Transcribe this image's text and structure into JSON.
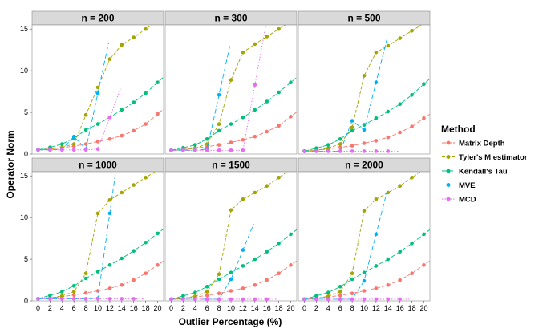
{
  "chart_data": {
    "type": "line",
    "xlabel": "Outlier Percentage (%)",
    "ylabel": "Operator Norm",
    "xticks": [
      0,
      2,
      4,
      6,
      8,
      10,
      12,
      14,
      16,
      18,
      20
    ],
    "yticks": [
      0,
      5,
      10,
      15
    ],
    "xlim": [
      -1,
      21
    ],
    "ylim": [
      0,
      15.5
    ],
    "legend_title": "Method",
    "legend_position": "right",
    "series_meta": [
      {
        "name": "Matrix Depth",
        "color": "#F8766D"
      },
      {
        "name": "Tyler's M estimator",
        "color": "#A3A500"
      },
      {
        "name": "Kendall's Tau",
        "color": "#00BF7D"
      },
      {
        "name": "MVE",
        "color": "#00B0F6"
      },
      {
        "name": "MCD",
        "color": "#E76BF3"
      }
    ],
    "panels": [
      {
        "title": "n = 200",
        "series": [
          {
            "name": "Matrix Depth",
            "x": [
              0,
              2,
              4,
              6,
              8,
              10,
              12,
              14,
              16,
              18,
              20
            ],
            "y": [
              0.5,
              0.6,
              0.75,
              0.95,
              1.2,
              1.5,
              1.8,
              2.2,
              2.8,
              3.6,
              4.8
            ]
          },
          {
            "name": "Tyler's M estimator",
            "x": [
              0,
              2,
              4,
              6,
              8,
              10,
              12,
              14,
              16,
              18
            ],
            "y": [
              0.5,
              0.6,
              0.8,
              1.2,
              4.7,
              8.0,
              11.4,
              13.1,
              14.0,
              15.0
            ]
          },
          {
            "name": "Kendall's Tau",
            "x": [
              0,
              2,
              4,
              6,
              8,
              10,
              12,
              14,
              16,
              18,
              20
            ],
            "y": [
              0.5,
              0.8,
              1.2,
              1.9,
              2.9,
              3.6,
              4.4,
              5.3,
              6.2,
              7.3,
              8.6
            ]
          },
          {
            "name": "MVE",
            "x": [
              0,
              2,
              4,
              6,
              8,
              10
            ],
            "y": [
              0.5,
              0.5,
              0.55,
              2.1,
              0.6,
              7.3
            ]
          },
          {
            "name": "MCD",
            "x": [
              0,
              2,
              4,
              6,
              8,
              10,
              12
            ],
            "y": [
              0.5,
              0.5,
              0.5,
              0.5,
              0.5,
              0.6,
              4.4
            ]
          }
        ]
      },
      {
        "title": "n = 300",
        "series": [
          {
            "name": "Matrix Depth",
            "x": [
              0,
              2,
              4,
              6,
              8,
              10,
              12,
              14,
              16,
              18,
              20
            ],
            "y": [
              0.45,
              0.55,
              0.7,
              0.9,
              1.1,
              1.4,
              1.7,
              2.1,
              2.7,
              3.4,
              4.5
            ]
          },
          {
            "name": "Tyler's M estimator",
            "x": [
              0,
              2,
              4,
              6,
              8,
              10,
              12,
              14,
              16,
              18
            ],
            "y": [
              0.45,
              0.5,
              0.7,
              1.2,
              3.6,
              8.9,
              12.2,
              13.2,
              14.1,
              15.0
            ]
          },
          {
            "name": "Kendall's Tau",
            "x": [
              0,
              2,
              4,
              6,
              8,
              10,
              12,
              14,
              16,
              18,
              20
            ],
            "y": [
              0.45,
              0.75,
              1.1,
              1.8,
              2.8,
              3.6,
              4.4,
              5.3,
              6.3,
              7.4,
              8.6
            ]
          },
          {
            "name": "MVE",
            "x": [
              0,
              2,
              4,
              6,
              8
            ],
            "y": [
              0.45,
              0.45,
              0.45,
              0.6,
              7.1
            ]
          },
          {
            "name": "MCD",
            "x": [
              0,
              2,
              4,
              6,
              8,
              10,
              12,
              14
            ],
            "y": [
              0.45,
              0.45,
              0.45,
              0.45,
              0.45,
              0.45,
              0.45,
              8.3
            ]
          }
        ]
      },
      {
        "title": "n = 500",
        "series": [
          {
            "name": "Matrix Depth",
            "x": [
              0,
              2,
              4,
              6,
              8,
              10,
              12,
              14,
              16,
              18,
              20
            ],
            "y": [
              0.35,
              0.45,
              0.6,
              0.8,
              1.0,
              1.3,
              1.6,
              2.0,
              2.6,
              3.3,
              4.3
            ]
          },
          {
            "name": "Tyler's M estimator",
            "x": [
              0,
              2,
              4,
              6,
              8,
              10,
              12,
              14,
              16,
              18
            ],
            "y": [
              0.35,
              0.45,
              0.7,
              1.2,
              3.2,
              9.4,
              12.2,
              13.0,
              13.9,
              14.8
            ]
          },
          {
            "name": "Kendall's Tau",
            "x": [
              0,
              2,
              4,
              6,
              8,
              10,
              12,
              14,
              16,
              18,
              20
            ],
            "y": [
              0.35,
              0.7,
              1.1,
              1.8,
              2.8,
              3.5,
              4.3,
              5.1,
              6.0,
              7.1,
              8.4
            ]
          },
          {
            "name": "MVE",
            "x": [
              0,
              2,
              4,
              6,
              8,
              10,
              12
            ],
            "y": [
              0.35,
              0.35,
              0.35,
              0.35,
              4.0,
              2.9,
              8.6
            ]
          },
          {
            "name": "MCD",
            "x": [
              0,
              2,
              4,
              6,
              8,
              10,
              12,
              14
            ],
            "y": [
              0.35,
              0.35,
              0.35,
              0.35,
              0.35,
              0.35,
              0.35,
              0.35
            ]
          }
        ]
      },
      {
        "title": "n = 1000",
        "series": [
          {
            "name": "Matrix Depth",
            "x": [
              0,
              2,
              4,
              6,
              8,
              10,
              12,
              14,
              16,
              18,
              20
            ],
            "y": [
              0.25,
              0.35,
              0.5,
              0.7,
              0.95,
              1.2,
              1.5,
              1.9,
              2.5,
              3.3,
              4.3
            ]
          },
          {
            "name": "Tyler's M estimator",
            "x": [
              0,
              2,
              4,
              6,
              8,
              10,
              12,
              14,
              16,
              18
            ],
            "y": [
              0.25,
              0.35,
              0.6,
              1.1,
              3.3,
              10.5,
              12.1,
              13.0,
              13.9,
              14.8
            ]
          },
          {
            "name": "Kendall's Tau",
            "x": [
              0,
              2,
              4,
              6,
              8,
              10,
              12,
              14,
              16,
              18,
              20
            ],
            "y": [
              0.25,
              0.65,
              1.1,
              1.8,
              2.7,
              3.5,
              4.3,
              5.1,
              6.0,
              7.0,
              8.1
            ]
          },
          {
            "name": "MVE",
            "x": [
              0,
              2,
              4,
              6,
              8,
              10,
              12
            ],
            "y": [
              0.25,
              0.25,
              0.25,
              0.25,
              0.25,
              0.3,
              10.5
            ]
          },
          {
            "name": "MCD",
            "x": [
              0,
              2,
              4,
              6,
              8,
              10,
              12,
              14,
              16
            ],
            "y": [
              0.25,
              0.25,
              0.25,
              0.25,
              0.25,
              0.25,
              0.25,
              0.25,
              0.25
            ]
          }
        ]
      },
      {
        "title": "n = 1500",
        "series": [
          {
            "name": "Matrix Depth",
            "x": [
              0,
              2,
              4,
              6,
              8,
              10,
              12,
              14,
              16,
              18,
              20
            ],
            "y": [
              0.2,
              0.3,
              0.45,
              0.65,
              0.9,
              1.2,
              1.5,
              1.9,
              2.5,
              3.3,
              4.3
            ]
          },
          {
            "name": "Tyler's M estimator",
            "x": [
              0,
              2,
              4,
              6,
              8,
              10,
              12,
              14,
              16,
              18
            ],
            "y": [
              0.2,
              0.3,
              0.55,
              1.1,
              3.2,
              10.9,
              12.2,
              13.0,
              13.8,
              14.8
            ]
          },
          {
            "name": "Kendall's Tau",
            "x": [
              0,
              2,
              4,
              6,
              8,
              10,
              12,
              14,
              16,
              18,
              20
            ],
            "y": [
              0.2,
              0.6,
              1.0,
              1.7,
              2.6,
              3.4,
              4.2,
              5.0,
              5.9,
              6.9,
              8.0
            ]
          },
          {
            "name": "MVE",
            "x": [
              0,
              2,
              4,
              6,
              8,
              10,
              12
            ],
            "y": [
              0.2,
              0.2,
              0.2,
              0.2,
              0.2,
              2.6,
              6.1
            ]
          },
          {
            "name": "MCD",
            "x": [
              0,
              2,
              4,
              6,
              8,
              10,
              12,
              14,
              16
            ],
            "y": [
              0.2,
              0.2,
              0.2,
              0.2,
              0.2,
              0.2,
              0.2,
              0.2,
              0.2
            ]
          }
        ]
      },
      {
        "title": "n = 2000",
        "series": [
          {
            "name": "Matrix Depth",
            "x": [
              0,
              2,
              4,
              6,
              8,
              10,
              12,
              14,
              16,
              18,
              20
            ],
            "y": [
              0.2,
              0.3,
              0.45,
              0.65,
              0.9,
              1.2,
              1.5,
              1.9,
              2.5,
              3.3,
              4.3
            ]
          },
          {
            "name": "Tyler's M estimator",
            "x": [
              0,
              2,
              4,
              6,
              8,
              10,
              12,
              14,
              16,
              18
            ],
            "y": [
              0.2,
              0.3,
              0.55,
              1.1,
              3.3,
              10.8,
              12.2,
              13.0,
              13.8,
              14.8
            ]
          },
          {
            "name": "Kendall's Tau",
            "x": [
              0,
              2,
              4,
              6,
              8,
              10,
              12,
              14,
              16,
              18,
              20
            ],
            "y": [
              0.2,
              0.6,
              1.0,
              1.7,
              2.6,
              3.4,
              4.2,
              5.0,
              5.9,
              6.9,
              8.0
            ]
          },
          {
            "name": "MVE",
            "x": [
              0,
              2,
              4,
              6,
              8,
              10,
              12
            ],
            "y": [
              0.2,
              0.2,
              0.2,
              0.2,
              0.2,
              2.4,
              8.0
            ]
          },
          {
            "name": "MCD",
            "x": [
              0,
              2,
              4,
              6,
              8,
              10,
              12,
              14,
              16
            ],
            "y": [
              0.2,
              0.2,
              0.2,
              0.2,
              0.2,
              0.2,
              0.2,
              0.2,
              0.2
            ]
          }
        ]
      }
    ]
  }
}
